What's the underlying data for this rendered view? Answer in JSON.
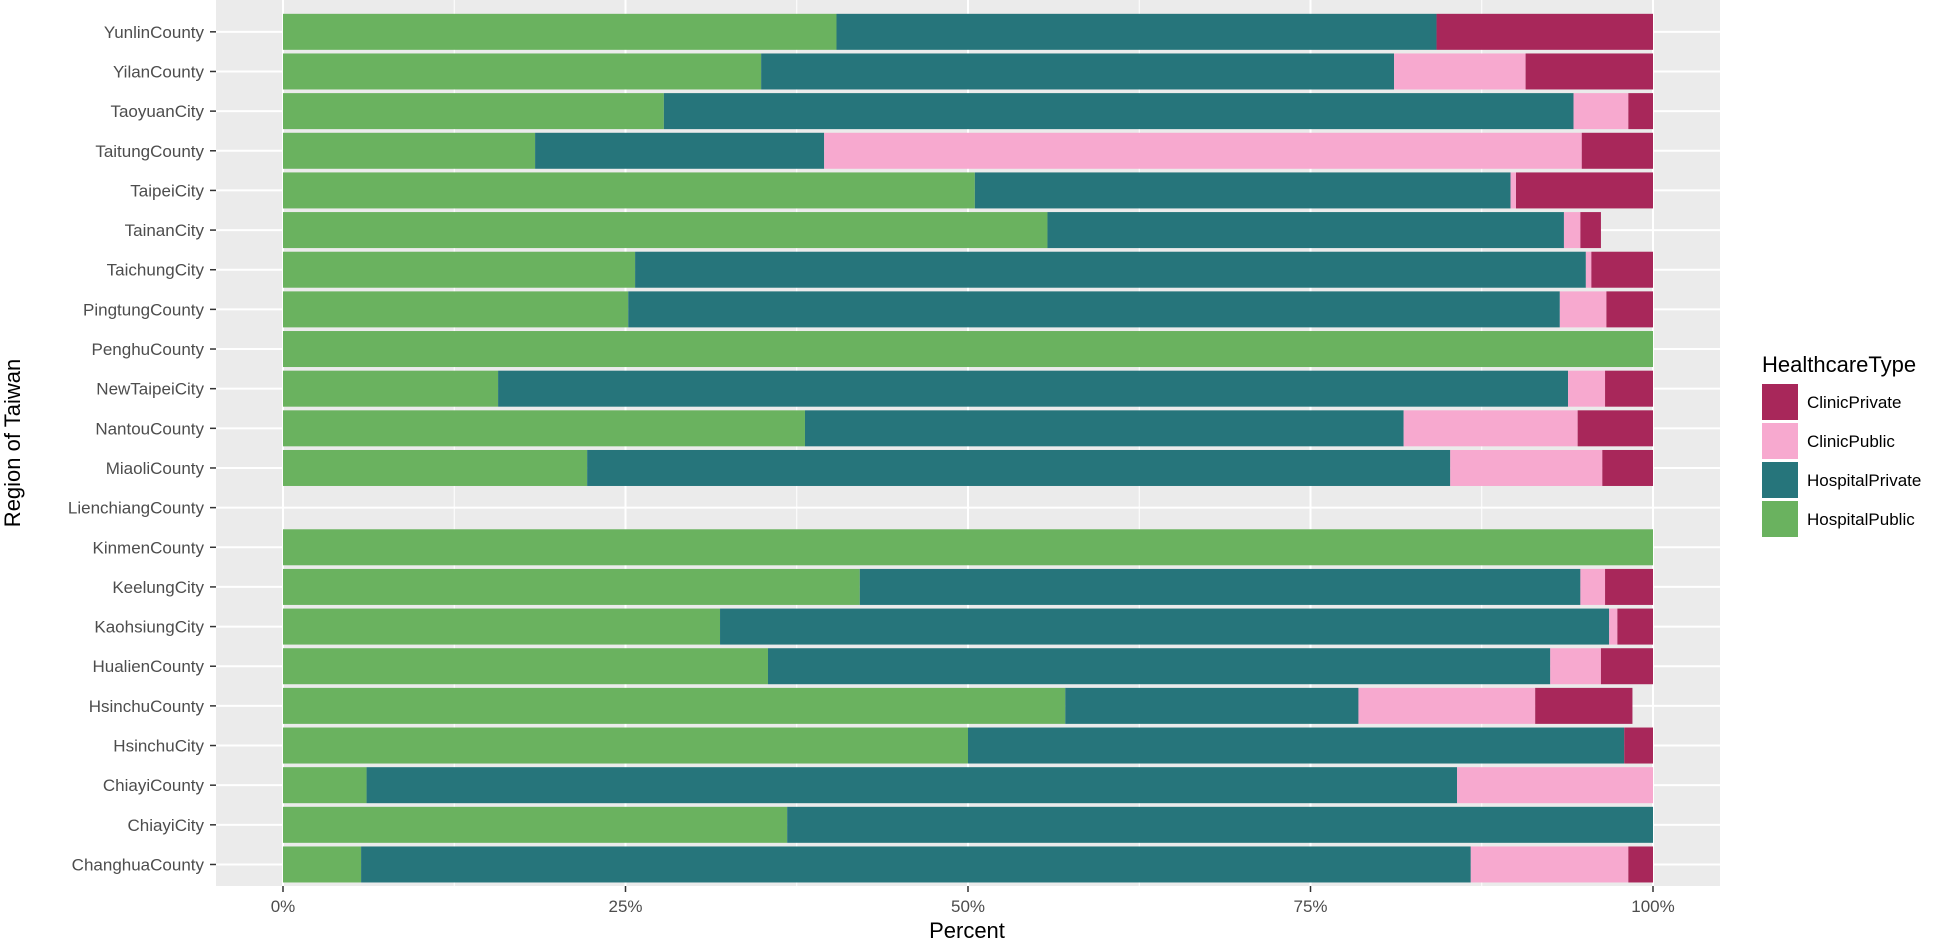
{
  "chart_data": {
    "type": "bar",
    "orientation": "horizontal",
    "stacked": "percent",
    "xlabel": "Percent",
    "ylabel": "Region of Taiwan",
    "xlim": [
      0,
      1
    ],
    "x_ticks": [
      {
        "value": 0,
        "label": "0%"
      },
      {
        "value": 0.25,
        "label": "25%"
      },
      {
        "value": 0.5,
        "label": "50%"
      },
      {
        "value": 0.75,
        "label": "75%"
      },
      {
        "value": 1,
        "label": "100%"
      }
    ],
    "grid": true,
    "legend": {
      "title": "HealthcareType",
      "position": "right",
      "entries": [
        "ClinicPrivate",
        "ClinicPublic",
        "HospitalPrivate",
        "HospitalPublic"
      ]
    },
    "categories": [
      "YunlinCounty",
      "YilanCounty",
      "TaoyuanCity",
      "TaitungCounty",
      "TaipeiCity",
      "TainanCity",
      "TaichungCity",
      "PingtungCounty",
      "PenghuCounty",
      "NewTaipeiCity",
      "NantouCounty",
      "MiaoliCounty",
      "LienchiangCounty",
      "KinmenCounty",
      "KeelungCity",
      "KaohsiungCity",
      "HualienCounty",
      "HsinchuCounty",
      "HsinchuCity",
      "ChiayiCounty",
      "ChiayiCity",
      "ChanghuaCounty"
    ],
    "series": [
      {
        "name": "HospitalPublic",
        "color": "#6ab25f",
        "values": [
          0.404,
          0.349,
          0.278,
          0.184,
          0.505,
          0.558,
          0.257,
          0.252,
          1.0,
          0.157,
          0.381,
          0.222,
          0,
          1.0,
          0.421,
          0.319,
          0.354,
          0.571,
          0.5,
          0.061,
          0.368,
          0.057
        ]
      },
      {
        "name": "HospitalPrivate",
        "color": "#26757b",
        "values": [
          0.438,
          0.462,
          0.664,
          0.211,
          0.391,
          0.377,
          0.694,
          0.68,
          0,
          0.781,
          0.437,
          0.63,
          0,
          0,
          0.526,
          0.649,
          0.571,
          0.214,
          0.479,
          0.796,
          0.632,
          0.81
        ]
      },
      {
        "name": "ClinicPublic",
        "color": "#f7a9cf",
        "values": [
          0,
          0.096,
          0.04,
          0.553,
          0.004,
          0.012,
          0.004,
          0.034,
          0,
          0.027,
          0.127,
          0.111,
          0,
          0,
          0.018,
          0.006,
          0.037,
          0.129,
          0,
          0.143,
          0,
          0.115
        ]
      },
      {
        "name": "ClinicPrivate",
        "color": "#a8275a",
        "values": [
          0.158,
          0.093,
          0.018,
          0.052,
          0.1,
          0.015,
          0.045,
          0.034,
          0,
          0.035,
          0.055,
          0.037,
          0,
          0,
          0.035,
          0.026,
          0.038,
          0.071,
          0.021,
          0,
          0,
          0.018
        ]
      }
    ]
  }
}
